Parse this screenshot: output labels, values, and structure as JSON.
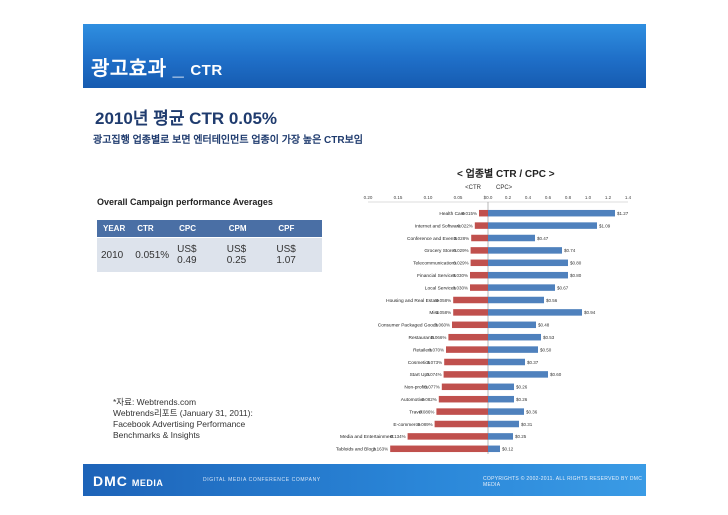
{
  "title": {
    "korean": "광고효과 _",
    "english": "CTR"
  },
  "heading": "2010년 평균 CTR 0.05%",
  "subheading": "광고집행 업종별로 보면 엔터테인먼트 업종이 가장 높은 CTR보임",
  "chart_caption": "< 업종별 CTR / CPC >",
  "averages": {
    "title": "Overall Campaign performance Averages",
    "headers": [
      "YEAR",
      "CTR",
      "CPC",
      "CPM",
      "CPF"
    ],
    "row": [
      "2010",
      "0.051%",
      "US$ 0.49",
      "US$ 0.25",
      "US$ 1.07"
    ]
  },
  "source": {
    "line1": "*자료: Webtrends.com",
    "line2": "Webtrends리포트 (January 31, 2011):",
    "line3": "Facebook Advertising Performance",
    "line4": "Benchmarks & Insights"
  },
  "footer": {
    "logo": "DMC",
    "logo_sub": "MEDIA",
    "conference": "DIGITAL MEDIA CONFERENCE COMPANY",
    "copyright": "COPYRIGHTS © 2002-2011. ALL RIGHTS RESERVED BY DMC MEDIA"
  },
  "chart_data": {
    "type": "bar",
    "title": "",
    "legend": {
      "ctr": "<CTR",
      "cpc": "CPC>"
    },
    "ctr_axis_ticks": [
      "0.20",
      "0.15",
      "0.10",
      "0.05"
    ],
    "cpc_axis_ticks": [
      "$0.0",
      "0.2",
      "0.4",
      "0.6",
      "0.8",
      "1.0",
      "1.2",
      "1.4"
    ],
    "ctr_range": [
      0,
      0.2
    ],
    "cpc_range": [
      0,
      1.4
    ],
    "colors": {
      "ctr": "#c0504d",
      "cpc": "#4f81bd"
    },
    "categories": [
      "Health Care",
      "Internet and Software",
      "Conference and Events",
      "Grocery Stores",
      "Telecommunications",
      "Financial Services",
      "Local Services",
      "Housing and Real Estate",
      "Misc",
      "Consumer Packaged Goods",
      "Restaurants",
      "Retailers",
      "Cosmetics",
      "Start Ups",
      "Non-profits",
      "Automotive",
      "Travel",
      "E-commerce",
      "Media and Entertainment",
      "Tabloids and Blogs"
    ],
    "series": [
      {
        "name": "CTR",
        "values": [
          0.015,
          0.022,
          0.028,
          0.029,
          0.029,
          0.03,
          0.03,
          0.058,
          0.058,
          0.06,
          0.066,
          0.07,
          0.073,
          0.074,
          0.077,
          0.082,
          0.086,
          0.089,
          0.134,
          0.163
        ],
        "labels": [
          "0.015%",
          "0.022%",
          "0.028%",
          "0.029%",
          "0.029%",
          "0.030%",
          "0.030%",
          "0.058%",
          "0.058%",
          "0.060%",
          "0.066%",
          "0.070%",
          "0.073%",
          "0.074%",
          "0.077%",
          "0.082%",
          "0.086%",
          "0.089%",
          "0.134%",
          "0.163%"
        ]
      },
      {
        "name": "CPC",
        "values": [
          1.27,
          1.09,
          0.47,
          0.74,
          0.8,
          0.8,
          0.67,
          0.56,
          0.94,
          0.48,
          0.53,
          0.5,
          0.37,
          0.6,
          0.26,
          0.26,
          0.36,
          0.31,
          0.25,
          0.12
        ],
        "labels": [
          "$1.27",
          "$1.09",
          "$0.47",
          "$0.74",
          "$0.80",
          "$0.80",
          "$0.67",
          "$0.56",
          "$0.94",
          "$0.48",
          "$0.53",
          "$0.50",
          "$0.37",
          "$0.60",
          "$0.26",
          "$0.26",
          "$0.36",
          "$0.31",
          "$0.25",
          "$0.12"
        ]
      }
    ]
  }
}
